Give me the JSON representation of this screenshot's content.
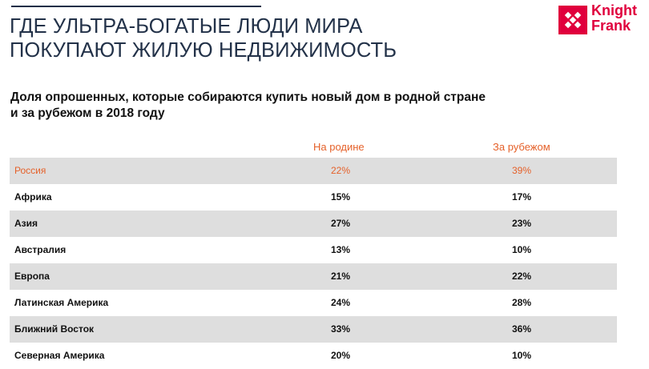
{
  "title": {
    "line1": "ГДЕ УЛЬТРА-БОГАТЫЕ ЛЮДИ МИРА",
    "line2": "ПОКУПАЮТ ЖИЛУЮ НЕДВИЖИМОСТЬ"
  },
  "logo": {
    "line1": "Knight",
    "line2": "Frank",
    "color": "#e0003d"
  },
  "subtitle": {
    "line1": "Доля опрошенных, которые собираются купить новый дом в родной стране",
    "line2": "и за рубежом в 2018 году"
  },
  "table": {
    "headers": [
      "",
      "На родине",
      "За рубежом"
    ],
    "rows": [
      {
        "country": "Россия",
        "home": "22%",
        "abroad": "39%"
      },
      {
        "country": "Африка",
        "home": "15%",
        "abroad": "17%"
      },
      {
        "country": "Азия",
        "home": "27%",
        "abroad": "23%"
      },
      {
        "country": "Австралия",
        "home": "13%",
        "abroad": "10%"
      },
      {
        "country": "Европа",
        "home": "21%",
        "abroad": "22%"
      },
      {
        "country": "Латинская Америка",
        "home": "24%",
        "abroad": "28%"
      },
      {
        "country": "Ближний Восток",
        "home": "33%",
        "abroad": "36%"
      },
      {
        "country": "Северная Америка",
        "home": "20%",
        "abroad": "10%"
      }
    ]
  },
  "colors": {
    "accent": "#e5612a",
    "title": "#233249",
    "row_shade": "#dedede"
  }
}
